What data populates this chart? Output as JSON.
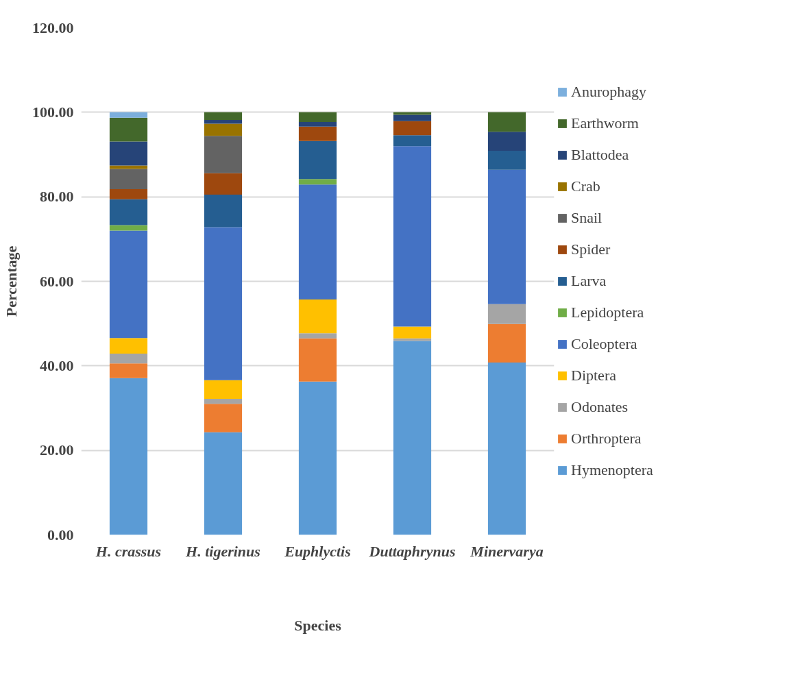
{
  "chart_data": {
    "type": "bar",
    "stacked": true,
    "xlabel": "Species",
    "ylabel": "Percentage",
    "categories": [
      "H. crassus",
      "H. tigerinus",
      "Euphlyctis",
      "Duttaphrynus",
      "Minervarya"
    ],
    "ylim": [
      0,
      120
    ],
    "yticks": [
      {
        "value": 0,
        "label": "0.00"
      },
      {
        "value": 20,
        "label": "20.00"
      },
      {
        "value": 40,
        "label": "40.00"
      },
      {
        "value": 60,
        "label": "60.00"
      },
      {
        "value": 80,
        "label": "80.00"
      },
      {
        "value": 100,
        "label": "100.00"
      },
      {
        "value": 120,
        "label": "120.00"
      }
    ],
    "grid": "y",
    "legend": "right",
    "series": [
      {
        "name": "Hymenoptera",
        "color": "#5b9bd5",
        "values": [
          37.1,
          24.3,
          36.3,
          45.9,
          40.8
        ]
      },
      {
        "name": "Orthroptera",
        "color": "#ed7d31",
        "values": [
          3.5,
          6.7,
          10.2,
          0,
          9.1
        ]
      },
      {
        "name": "Odonates",
        "color": "#a5a5a5",
        "values": [
          2.3,
          1.2,
          1.2,
          0.6,
          4.7
        ]
      },
      {
        "name": "Diptera",
        "color": "#ffc000",
        "values": [
          3.7,
          4.4,
          8.0,
          2.8,
          0
        ]
      },
      {
        "name": "Coleoptera",
        "color": "#4472c4",
        "values": [
          25.4,
          36.2,
          27.2,
          42.7,
          31.8
        ]
      },
      {
        "name": "Lepidoptera",
        "color": "#70ad47",
        "values": [
          1.3,
          0,
          1.3,
          0,
          0
        ]
      },
      {
        "name": "Larva",
        "color": "#255e91",
        "values": [
          6.1,
          7.7,
          9.0,
          2.6,
          4.5
        ]
      },
      {
        "name": "Spider",
        "color": "#9e480e",
        "values": [
          2.4,
          5.1,
          3.4,
          3.3,
          0
        ]
      },
      {
        "name": "Snail",
        "color": "#636363",
        "values": [
          4.8,
          8.8,
          0,
          0,
          0
        ]
      },
      {
        "name": "Crab",
        "color": "#997300",
        "values": [
          0.8,
          2.9,
          0,
          0,
          0
        ]
      },
      {
        "name": "Blattodea",
        "color": "#264478",
        "values": [
          5.7,
          0.9,
          1.1,
          1.5,
          4.5
        ]
      },
      {
        "name": "Earthworm",
        "color": "#43682b",
        "values": [
          5.6,
          1.8,
          2.3,
          0.6,
          4.6
        ]
      },
      {
        "name": "Anurophagy",
        "color": "#7cafdd",
        "values": [
          1.3,
          0,
          0,
          0,
          0
        ]
      }
    ]
  }
}
